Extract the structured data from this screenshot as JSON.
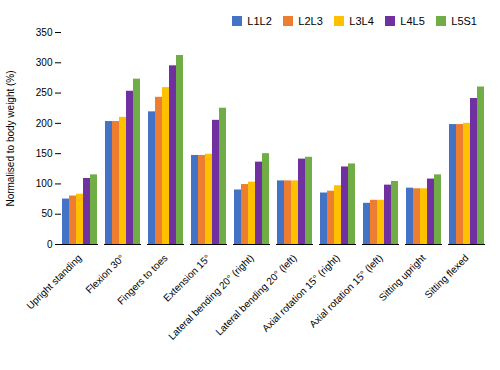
{
  "chart_data": {
    "type": "bar",
    "categories": [
      "Upright standing",
      "Flexion 30°",
      "Fingers to toes",
      "Extension 15°",
      "Lateral bending 20° (right)",
      "Lateral bending 20° (left)",
      "Axial rotation 15° (right)",
      "Axial rotation 15° (left)",
      "Sitting upright",
      "Sitting flexed"
    ],
    "series": [
      {
        "name": "L1L2",
        "color": "#4472c4",
        "values": [
          75,
          203,
          219,
          147,
          90,
          105,
          85,
          68,
          93,
          198
        ]
      },
      {
        "name": "L2L3",
        "color": "#ed7d31",
        "values": [
          80,
          203,
          243,
          147,
          99,
          105,
          88,
          73,
          92,
          198
        ]
      },
      {
        "name": "L3L4",
        "color": "#ffc000",
        "values": [
          83,
          210,
          259,
          149,
          103,
          105,
          97,
          73,
          92,
          200
        ]
      },
      {
        "name": "L4L5",
        "color": "#7030a0",
        "values": [
          109,
          253,
          295,
          205,
          136,
          141,
          128,
          98,
          108,
          241
        ]
      },
      {
        "name": "L5S1",
        "color": "#70ad47",
        "values": [
          115,
          273,
          312,
          225,
          150,
          144,
          133,
          104,
          115,
          260
        ]
      }
    ],
    "ylabel": "Normalised to body weight (%)",
    "ylim": [
      0,
      350
    ],
    "yticks": [
      0,
      50,
      100,
      150,
      200,
      250,
      300,
      350
    ],
    "grid": false,
    "legend": "upper right"
  }
}
